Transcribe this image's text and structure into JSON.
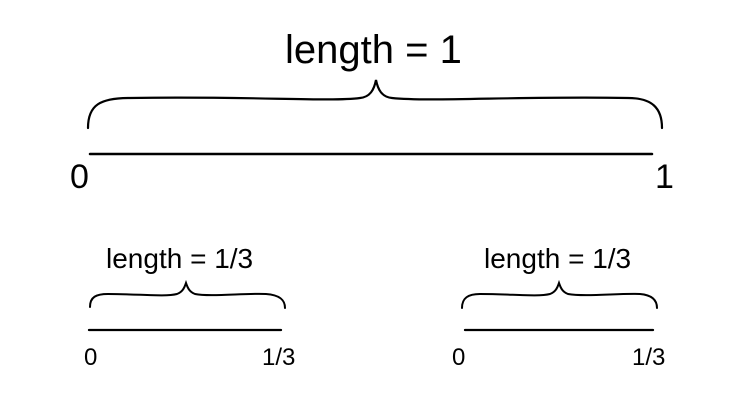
{
  "diagram": {
    "top": {
      "label": "length = 1",
      "start_label": "0",
      "end_label": "1"
    },
    "left": {
      "label": "length = 1/3",
      "start_label": "0",
      "end_label": "1/3"
    },
    "right": {
      "label": "length = 1/3",
      "start_label": "0",
      "end_label": "1/3"
    }
  }
}
